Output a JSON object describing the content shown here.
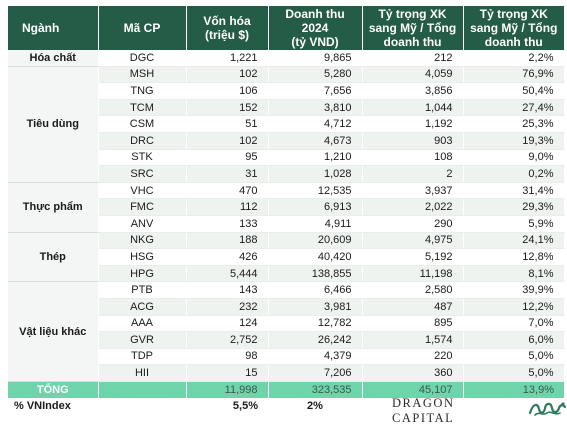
{
  "headers": {
    "sector": "Ngành",
    "code": "Mã CP",
    "cap_line1": "Vốn hóa",
    "cap_line2": "(triệu $)",
    "rev_line1": "Doanh thu 2024",
    "rev_line2": "(tỷ VND)",
    "share_line1": "Tỷ trọng XK",
    "share_line2": "sang Mỹ / Tổng",
    "share_line3": "doanh thu",
    "ratio_line1": "Tỷ trọng XK",
    "ratio_line2": "sang Mỹ / Tổng",
    "ratio_line3": "doanh thu"
  },
  "groups": [
    {
      "sector": "Hóa chất",
      "rows": [
        {
          "code": "DGC",
          "cap": "1,221",
          "rev": "9,865",
          "exp": "212",
          "pct": "2,2%"
        }
      ]
    },
    {
      "sector": "Tiêu dùng",
      "rows": [
        {
          "code": "MSH",
          "cap": "102",
          "rev": "5,280",
          "exp": "4,059",
          "pct": "76,9%"
        },
        {
          "code": "TNG",
          "cap": "106",
          "rev": "7,656",
          "exp": "3,856",
          "pct": "50,4%"
        },
        {
          "code": "TCM",
          "cap": "152",
          "rev": "3,810",
          "exp": "1,044",
          "pct": "27,4%"
        },
        {
          "code": "CSM",
          "cap": "51",
          "rev": "4,712",
          "exp": "1,192",
          "pct": "25,3%"
        },
        {
          "code": "DRC",
          "cap": "102",
          "rev": "4,673",
          "exp": "903",
          "pct": "19,3%"
        },
        {
          "code": "STK",
          "cap": "95",
          "rev": "1,210",
          "exp": "108",
          "pct": "9,0%"
        },
        {
          "code": "SRC",
          "cap": "31",
          "rev": "1,028",
          "exp": "2",
          "pct": "0,2%"
        }
      ]
    },
    {
      "sector": "Thực phẩm",
      "rows": [
        {
          "code": "VHC",
          "cap": "470",
          "rev": "12,535",
          "exp": "3,937",
          "pct": "31,4%"
        },
        {
          "code": "FMC",
          "cap": "112",
          "rev": "6,913",
          "exp": "2,022",
          "pct": "29,3%"
        },
        {
          "code": "ANV",
          "cap": "133",
          "rev": "4,911",
          "exp": "290",
          "pct": "5,9%"
        }
      ]
    },
    {
      "sector": "Thép",
      "rows": [
        {
          "code": "NKG",
          "cap": "188",
          "rev": "20,609",
          "exp": "4,975",
          "pct": "24,1%"
        },
        {
          "code": "HSG",
          "cap": "426",
          "rev": "40,420",
          "exp": "5,192",
          "pct": "12,8%"
        },
        {
          "code": "HPG",
          "cap": "5,444",
          "rev": "138,855",
          "exp": "11,198",
          "pct": "8,1%"
        }
      ]
    },
    {
      "sector": "Vật liệu khác",
      "rows": [
        {
          "code": "PTB",
          "cap": "143",
          "rev": "6,466",
          "exp": "2,580",
          "pct": "39,9%"
        },
        {
          "code": "ACG",
          "cap": "232",
          "rev": "3,981",
          "exp": "487",
          "pct": "12,2%"
        },
        {
          "code": "AAA",
          "cap": "124",
          "rev": "12,782",
          "exp": "895",
          "pct": "7,0%"
        },
        {
          "code": "GVR",
          "cap": "2,752",
          "rev": "26,242",
          "exp": "1,574",
          "pct": "6,0%"
        },
        {
          "code": "TDP",
          "cap": "98",
          "rev": "4,379",
          "exp": "220",
          "pct": "5,0%"
        },
        {
          "code": "HII",
          "cap": "15",
          "rev": "7,206",
          "exp": "360",
          "pct": "5,0%"
        }
      ]
    }
  ],
  "total": {
    "label": "TỔNG",
    "cap": "11,998",
    "rev": "323,535",
    "exp": "45,107",
    "pct": "13,9%"
  },
  "vnindex": {
    "label": "% VNIndex",
    "cap": "5,5%",
    "rev": "2%"
  },
  "brand": {
    "name": "DRAGON CAPITAL",
    "logo_icon": "dragon-logo-icon",
    "colors": {
      "header": "#255c47",
      "total": "#6fd4a9",
      "logo": "#2f7a5a"
    }
  }
}
